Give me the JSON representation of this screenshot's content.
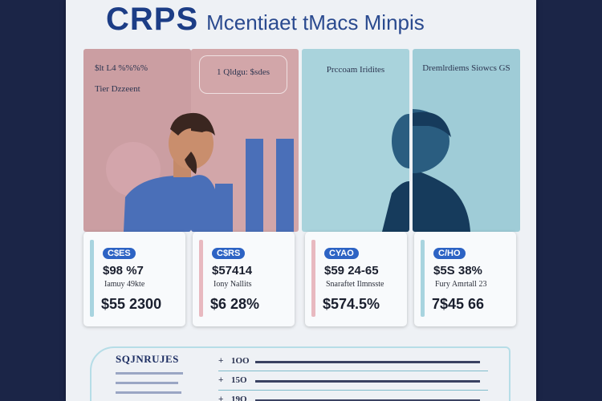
{
  "title": {
    "main": "CRPS",
    "sub": "Mcentiaet tMacs Minpis"
  },
  "panels": [
    {
      "header": "$lt L4 %%%%",
      "sub": "Tier Dzzeent",
      "color": "#cb9ea2"
    },
    {
      "header": "1 Qldgu: $sdes",
      "sub": "",
      "color": "#d2a6a9"
    },
    {
      "header": "Prccoam Iridites",
      "sub": "",
      "color": "#a9d3dc"
    },
    {
      "header": "Dremlrdiems Siowcs GS",
      "sub": "",
      "color": "#9fccd7"
    }
  ],
  "cards": [
    {
      "badge": "C$ES",
      "value": "$98 %7",
      "label": "Iamuy 49kte",
      "big": "$55 2300",
      "stripe": "#a8d4df"
    },
    {
      "badge": "C$RS",
      "value": "$57414",
      "label": "Iony Nallits",
      "big": "$6 28%",
      "stripe": "#e8b9c0"
    },
    {
      "badge": "CYAO",
      "value": "$59 24-65",
      "label": "Snaraftet Ilmnsste",
      "big": "$574.5%",
      "stripe": "#e8b9c0"
    },
    {
      "badge": "C/HO",
      "value": "$5S 38%",
      "label": "Fury Amrtall 23",
      "big": "7$45 66",
      "stripe": "#a8d4df"
    }
  ],
  "bottom": {
    "title": "SQJNRUJES",
    "rows": [
      {
        "bullet": "+",
        "num": "1OO"
      },
      {
        "bullet": "+",
        "num": "15O"
      },
      {
        "bullet": "+",
        "num": "19O"
      }
    ]
  }
}
